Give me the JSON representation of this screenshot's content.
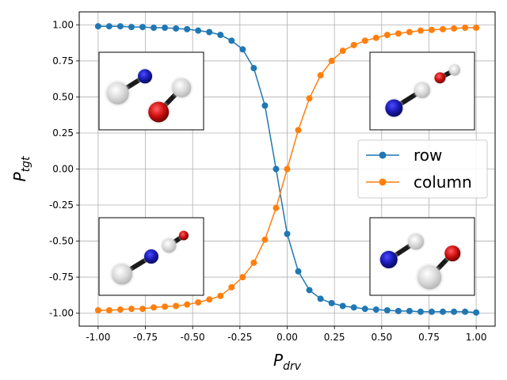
{
  "chart_data": {
    "type": "line",
    "xlabel": {
      "base": "P",
      "sub": "drv"
    },
    "ylabel": {
      "base": "P",
      "sub": "tgt"
    },
    "xlim": [
      -1.1,
      1.1
    ],
    "ylim": [
      -1.09,
      1.09
    ],
    "xticks": [
      "-1.00",
      "-0.75",
      "-0.50",
      "-0.25",
      "0.00",
      "0.25",
      "0.50",
      "0.75",
      "1.00"
    ],
    "yticks": [
      "-1.00",
      "-0.75",
      "-0.50",
      "-0.25",
      "0.00",
      "0.25",
      "0.50",
      "0.75",
      "1.00"
    ],
    "grid": true,
    "legend_position": "center-right",
    "x": [
      -1.0,
      -0.9412,
      -0.8824,
      -0.8235,
      -0.7647,
      -0.7059,
      -0.6471,
      -0.5882,
      -0.5294,
      -0.4706,
      -0.4118,
      -0.3529,
      -0.2941,
      -0.2353,
      -0.1765,
      -0.1176,
      -0.0588,
      0.0,
      0.0588,
      0.1176,
      0.1765,
      0.2353,
      0.2941,
      0.3529,
      0.4118,
      0.4706,
      0.5294,
      0.5882,
      0.6471,
      0.7059,
      0.7647,
      0.8235,
      0.8824,
      0.9412,
      1.0
    ],
    "series": [
      {
        "name": "row",
        "color": "#1f77b4",
        "values": [
          0.99,
          0.99,
          0.99,
          0.985,
          0.985,
          0.98,
          0.98,
          0.975,
          0.97,
          0.96,
          0.95,
          0.93,
          0.89,
          0.83,
          0.7,
          0.44,
          0.0,
          -0.45,
          -0.71,
          -0.84,
          -0.9,
          -0.93,
          -0.95,
          -0.96,
          -0.97,
          -0.975,
          -0.98,
          -0.985,
          -0.985,
          -0.99,
          -0.99,
          -0.99,
          -0.99,
          -0.99,
          -0.995
        ]
      },
      {
        "name": "column",
        "color": "#ff7f0e",
        "values": [
          -0.98,
          -0.98,
          -0.975,
          -0.97,
          -0.97,
          -0.96,
          -0.955,
          -0.95,
          -0.94,
          -0.925,
          -0.905,
          -0.88,
          -0.82,
          -0.75,
          -0.65,
          -0.49,
          -0.27,
          0.0,
          0.27,
          0.49,
          0.65,
          0.75,
          0.82,
          0.86,
          0.89,
          0.91,
          0.93,
          0.94,
          0.95,
          0.96,
          0.965,
          0.97,
          0.975,
          0.98,
          0.98
        ]
      }
    ]
  },
  "insets": [
    {
      "position": "top-left",
      "atoms": [
        {
          "c": "white"
        },
        {
          "c": "blue"
        },
        {
          "c": "white"
        },
        {
          "c": "red"
        }
      ]
    },
    {
      "position": "top-right",
      "atoms": [
        {
          "c": "blue"
        },
        {
          "c": "white"
        },
        {
          "c": "red"
        },
        {
          "c": "white"
        }
      ]
    },
    {
      "position": "bottom-left",
      "atoms": [
        {
          "c": "white"
        },
        {
          "c": "blue"
        },
        {
          "c": "white"
        },
        {
          "c": "red"
        }
      ]
    },
    {
      "position": "bottom-right",
      "atoms": [
        {
          "c": "blue"
        },
        {
          "c": "white"
        },
        {
          "c": "white"
        },
        {
          "c": "red"
        }
      ]
    }
  ]
}
